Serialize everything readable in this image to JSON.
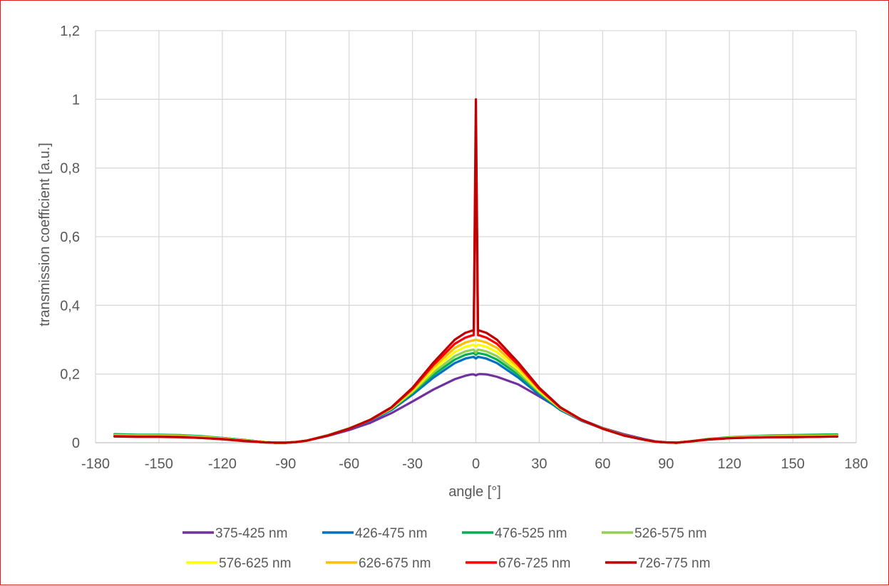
{
  "chart_data": {
    "type": "line",
    "title": "",
    "xlabel": "angle [°]",
    "ylabel": "transmission coefficient [a.u.]",
    "xlim": [
      -180,
      180
    ],
    "ylim": [
      0,
      1.2
    ],
    "x_ticks": [
      "-180",
      "-150",
      "-120",
      "-90",
      "-60",
      "-30",
      "0",
      "30",
      "60",
      "90",
      "120",
      "150",
      "180"
    ],
    "y_ticks": [
      "0",
      "0,2",
      "0,4",
      "0,6",
      "0,8",
      "1",
      "1,2"
    ],
    "grid": true,
    "legend_position": "bottom",
    "x": [
      -171,
      -160,
      -150,
      -140,
      -130,
      -120,
      -110,
      -100,
      -95,
      -90,
      -85,
      -80,
      -70,
      -60,
      -50,
      -40,
      -30,
      -20,
      -10,
      -5,
      -2,
      -1,
      0,
      1,
      2,
      5,
      10,
      20,
      30,
      40,
      50,
      60,
      70,
      80,
      85,
      90,
      95,
      100,
      110,
      120,
      130,
      140,
      150,
      160,
      171
    ],
    "series": [
      {
        "name": "375-425 nm",
        "color": "#7030a0",
        "values": [
          0.024,
          0.022,
          0.022,
          0.021,
          0.018,
          0.014,
          0.008,
          0.002,
          0.0,
          0.0,
          0.002,
          0.006,
          0.02,
          0.037,
          0.058,
          0.086,
          0.12,
          0.155,
          0.185,
          0.195,
          0.199,
          0.199,
          0.196,
          0.199,
          0.2,
          0.199,
          0.192,
          0.17,
          0.135,
          0.098,
          0.067,
          0.043,
          0.025,
          0.01,
          0.004,
          0.001,
          0.0,
          0.003,
          0.01,
          0.015,
          0.018,
          0.02,
          0.021,
          0.021,
          0.022
        ]
      },
      {
        "name": "426-475 nm",
        "color": "#0070c0",
        "values": [
          0.024,
          0.022,
          0.022,
          0.021,
          0.018,
          0.014,
          0.008,
          0.002,
          0.0,
          0.0,
          0.002,
          0.006,
          0.022,
          0.041,
          0.064,
          0.095,
          0.14,
          0.19,
          0.232,
          0.245,
          0.249,
          0.25,
          0.245,
          0.25,
          0.249,
          0.245,
          0.232,
          0.19,
          0.14,
          0.095,
          0.064,
          0.041,
          0.022,
          0.008,
          0.003,
          0.001,
          0.0,
          0.003,
          0.01,
          0.015,
          0.018,
          0.02,
          0.021,
          0.022,
          0.022
        ]
      },
      {
        "name": "476-525 nm",
        "color": "#00b050",
        "values": [
          0.025,
          0.023,
          0.023,
          0.022,
          0.019,
          0.014,
          0.008,
          0.002,
          0.0,
          0.0,
          0.002,
          0.006,
          0.022,
          0.042,
          0.066,
          0.098,
          0.145,
          0.198,
          0.242,
          0.256,
          0.26,
          0.261,
          0.256,
          0.261,
          0.26,
          0.256,
          0.242,
          0.198,
          0.145,
          0.098,
          0.066,
          0.042,
          0.022,
          0.008,
          0.003,
          0.001,
          0.0,
          0.003,
          0.011,
          0.016,
          0.019,
          0.021,
          0.022,
          0.023,
          0.024
        ]
      },
      {
        "name": "526-575 nm",
        "color": "#92d050",
        "values": [
          0.022,
          0.021,
          0.021,
          0.02,
          0.017,
          0.013,
          0.007,
          0.002,
          0.0,
          0.0,
          0.002,
          0.006,
          0.022,
          0.042,
          0.066,
          0.099,
          0.148,
          0.205,
          0.252,
          0.266,
          0.27,
          0.271,
          0.262,
          0.271,
          0.27,
          0.266,
          0.252,
          0.205,
          0.148,
          0.099,
          0.066,
          0.042,
          0.022,
          0.008,
          0.003,
          0.001,
          0.0,
          0.003,
          0.01,
          0.015,
          0.018,
          0.019,
          0.02,
          0.02,
          0.021
        ]
      },
      {
        "name": "576-625 nm",
        "color": "#ffff00",
        "values": [
          0.021,
          0.02,
          0.02,
          0.019,
          0.016,
          0.012,
          0.007,
          0.002,
          0.0,
          0.0,
          0.002,
          0.006,
          0.021,
          0.041,
          0.066,
          0.1,
          0.151,
          0.213,
          0.264,
          0.279,
          0.284,
          0.285,
          0.28,
          0.285,
          0.284,
          0.279,
          0.264,
          0.213,
          0.151,
          0.1,
          0.066,
          0.041,
          0.021,
          0.008,
          0.003,
          0.001,
          0.0,
          0.003,
          0.01,
          0.014,
          0.017,
          0.018,
          0.019,
          0.019,
          0.02
        ]
      },
      {
        "name": "626-675 nm",
        "color": "#ffc000",
        "values": [
          0.02,
          0.019,
          0.019,
          0.018,
          0.015,
          0.011,
          0.006,
          0.001,
          0.0,
          0.0,
          0.002,
          0.006,
          0.021,
          0.041,
          0.066,
          0.101,
          0.154,
          0.22,
          0.276,
          0.292,
          0.297,
          0.298,
          0.3,
          0.298,
          0.297,
          0.292,
          0.276,
          0.22,
          0.154,
          0.101,
          0.066,
          0.041,
          0.021,
          0.008,
          0.003,
          0.001,
          0.0,
          0.003,
          0.01,
          0.014,
          0.016,
          0.017,
          0.018,
          0.018,
          0.019
        ]
      },
      {
        "name": "676-725 nm",
        "color": "#ff0000",
        "values": [
          0.019,
          0.018,
          0.018,
          0.017,
          0.014,
          0.011,
          0.006,
          0.001,
          0.0,
          0.0,
          0.002,
          0.006,
          0.021,
          0.041,
          0.066,
          0.102,
          0.157,
          0.227,
          0.288,
          0.306,
          0.312,
          0.313,
          0.9,
          0.313,
          0.312,
          0.306,
          0.288,
          0.227,
          0.157,
          0.102,
          0.066,
          0.041,
          0.021,
          0.008,
          0.003,
          0.001,
          0.0,
          0.003,
          0.01,
          0.013,
          0.015,
          0.016,
          0.017,
          0.017,
          0.018
        ]
      },
      {
        "name": "726-775 nm",
        "color": "#c00000",
        "values": [
          0.018,
          0.017,
          0.017,
          0.016,
          0.014,
          0.01,
          0.005,
          0.001,
          0.0,
          0.0,
          0.002,
          0.006,
          0.021,
          0.041,
          0.067,
          0.103,
          0.16,
          0.234,
          0.3,
          0.32,
          0.326,
          0.327,
          1.0,
          0.327,
          0.326,
          0.32,
          0.3,
          0.234,
          0.16,
          0.103,
          0.067,
          0.041,
          0.021,
          0.008,
          0.003,
          0.001,
          0.0,
          0.003,
          0.009,
          0.013,
          0.015,
          0.016,
          0.016,
          0.017,
          0.018
        ]
      }
    ]
  }
}
